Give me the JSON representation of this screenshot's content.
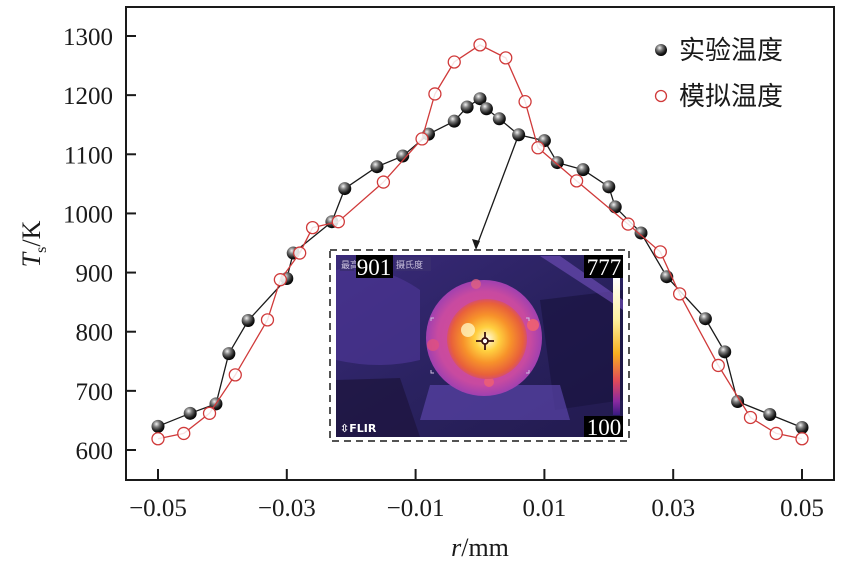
{
  "chart_data": {
    "type": "line",
    "title": "",
    "xlabel": "r/mm",
    "xlabel_parts": {
      "italic": "r",
      "rest": "/mm"
    },
    "ylabel": "Ts/K",
    "ylabel_parts": {
      "italic": "T",
      "sub": "s",
      "rest": "/K"
    },
    "xlim": [
      -0.055,
      0.055
    ],
    "ylim": [
      550,
      1350
    ],
    "xticks": [
      -0.05,
      -0.03,
      -0.01,
      0.01,
      0.03,
      0.05
    ],
    "xtick_labels": [
      "−0.05",
      "−0.03",
      "−0.01",
      "0.01",
      "0.03",
      "0.05"
    ],
    "yticks": [
      600,
      700,
      800,
      900,
      1000,
      1100,
      1200,
      1300
    ],
    "ytick_labels": [
      "600",
      "700",
      "800",
      "900",
      "1000",
      "1100",
      "1200",
      "1300"
    ],
    "grid": false,
    "legend_position": "top-right",
    "series": [
      {
        "name": "实验温度",
        "marker": "filled-sphere",
        "color": "#1a1a1a",
        "x": [
          -0.05,
          -0.045,
          -0.041,
          -0.039,
          -0.036,
          -0.03,
          -0.029,
          -0.023,
          -0.021,
          -0.016,
          -0.012,
          -0.008,
          -0.004,
          -0.002,
          0.0,
          0.001,
          0.003,
          0.006,
          0.01,
          0.012,
          0.016,
          0.02,
          0.021,
          0.025,
          0.029,
          0.035,
          0.038,
          0.04,
          0.045,
          0.05
        ],
        "y": [
          640,
          662,
          678,
          763,
          819,
          890,
          933,
          986,
          1042,
          1079,
          1097,
          1134,
          1156,
          1180,
          1194,
          1177,
          1160,
          1133,
          1123,
          1086,
          1074,
          1045,
          1011,
          967,
          893,
          822,
          766,
          682,
          660,
          638
        ]
      },
      {
        "name": "模拟温度",
        "marker": "open-circle",
        "color": "#d03a3a",
        "x": [
          -0.05,
          -0.046,
          -0.042,
          -0.038,
          -0.033,
          -0.031,
          -0.028,
          -0.026,
          -0.022,
          -0.015,
          -0.009,
          -0.007,
          -0.004,
          0.0,
          0.004,
          0.007,
          0.009,
          0.015,
          0.023,
          0.028,
          0.031,
          0.037,
          0.042,
          0.046,
          0.05
        ],
        "y": [
          619,
          628,
          662,
          727,
          820,
          888,
          933,
          976,
          986,
          1053,
          1126,
          1202,
          1256,
          1285,
          1263,
          1189,
          1111,
          1055,
          982,
          935,
          864,
          743,
          655,
          628,
          619
        ]
      }
    ],
    "annotation": {
      "type": "arrow",
      "from_point": {
        "x": 0.006,
        "y": 1133
      },
      "to": "inset-image",
      "description": "arrow from experimental point to thermal camera inset"
    },
    "inset": {
      "description": "FLIR thermal camera image",
      "max_label": "最高",
      "max_value": "901",
      "unit_label": "摄氏度",
      "scale_top": "777",
      "scale_bottom": "100",
      "brand": "FLIR"
    }
  }
}
